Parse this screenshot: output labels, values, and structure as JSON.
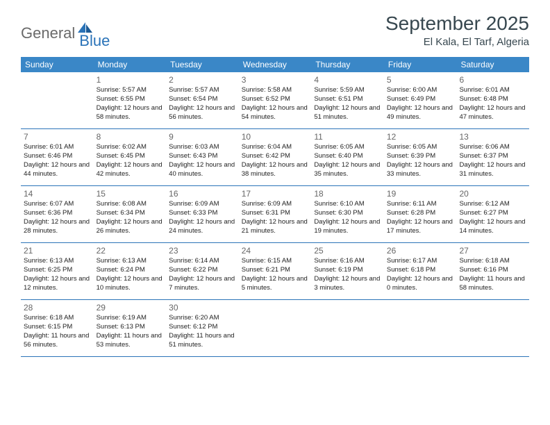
{
  "logo": {
    "general": "General",
    "blue": "Blue"
  },
  "title": "September 2025",
  "location": "El Kala, El Tarf, Algeria",
  "colors": {
    "header_bg": "#3a87c7",
    "header_text": "#ffffff",
    "row_border": "#2a73b8",
    "logo_gray": "#6a6a6a",
    "logo_blue": "#2a73b8",
    "title_color": "#37474f",
    "daynum_color": "#666666",
    "body_text": "#222222"
  },
  "day_names": [
    "Sunday",
    "Monday",
    "Tuesday",
    "Wednesday",
    "Thursday",
    "Friday",
    "Saturday"
  ],
  "weeks": [
    [
      null,
      {
        "n": "1",
        "sunrise": "5:57 AM",
        "sunset": "6:55 PM",
        "daylight": "12 hours and 58 minutes."
      },
      {
        "n": "2",
        "sunrise": "5:57 AM",
        "sunset": "6:54 PM",
        "daylight": "12 hours and 56 minutes."
      },
      {
        "n": "3",
        "sunrise": "5:58 AM",
        "sunset": "6:52 PM",
        "daylight": "12 hours and 54 minutes."
      },
      {
        "n": "4",
        "sunrise": "5:59 AM",
        "sunset": "6:51 PM",
        "daylight": "12 hours and 51 minutes."
      },
      {
        "n": "5",
        "sunrise": "6:00 AM",
        "sunset": "6:49 PM",
        "daylight": "12 hours and 49 minutes."
      },
      {
        "n": "6",
        "sunrise": "6:01 AM",
        "sunset": "6:48 PM",
        "daylight": "12 hours and 47 minutes."
      }
    ],
    [
      {
        "n": "7",
        "sunrise": "6:01 AM",
        "sunset": "6:46 PM",
        "daylight": "12 hours and 44 minutes."
      },
      {
        "n": "8",
        "sunrise": "6:02 AM",
        "sunset": "6:45 PM",
        "daylight": "12 hours and 42 minutes."
      },
      {
        "n": "9",
        "sunrise": "6:03 AM",
        "sunset": "6:43 PM",
        "daylight": "12 hours and 40 minutes."
      },
      {
        "n": "10",
        "sunrise": "6:04 AM",
        "sunset": "6:42 PM",
        "daylight": "12 hours and 38 minutes."
      },
      {
        "n": "11",
        "sunrise": "6:05 AM",
        "sunset": "6:40 PM",
        "daylight": "12 hours and 35 minutes."
      },
      {
        "n": "12",
        "sunrise": "6:05 AM",
        "sunset": "6:39 PM",
        "daylight": "12 hours and 33 minutes."
      },
      {
        "n": "13",
        "sunrise": "6:06 AM",
        "sunset": "6:37 PM",
        "daylight": "12 hours and 31 minutes."
      }
    ],
    [
      {
        "n": "14",
        "sunrise": "6:07 AM",
        "sunset": "6:36 PM",
        "daylight": "12 hours and 28 minutes."
      },
      {
        "n": "15",
        "sunrise": "6:08 AM",
        "sunset": "6:34 PM",
        "daylight": "12 hours and 26 minutes."
      },
      {
        "n": "16",
        "sunrise": "6:09 AM",
        "sunset": "6:33 PM",
        "daylight": "12 hours and 24 minutes."
      },
      {
        "n": "17",
        "sunrise": "6:09 AM",
        "sunset": "6:31 PM",
        "daylight": "12 hours and 21 minutes."
      },
      {
        "n": "18",
        "sunrise": "6:10 AM",
        "sunset": "6:30 PM",
        "daylight": "12 hours and 19 minutes."
      },
      {
        "n": "19",
        "sunrise": "6:11 AM",
        "sunset": "6:28 PM",
        "daylight": "12 hours and 17 minutes."
      },
      {
        "n": "20",
        "sunrise": "6:12 AM",
        "sunset": "6:27 PM",
        "daylight": "12 hours and 14 minutes."
      }
    ],
    [
      {
        "n": "21",
        "sunrise": "6:13 AM",
        "sunset": "6:25 PM",
        "daylight": "12 hours and 12 minutes."
      },
      {
        "n": "22",
        "sunrise": "6:13 AM",
        "sunset": "6:24 PM",
        "daylight": "12 hours and 10 minutes."
      },
      {
        "n": "23",
        "sunrise": "6:14 AM",
        "sunset": "6:22 PM",
        "daylight": "12 hours and 7 minutes."
      },
      {
        "n": "24",
        "sunrise": "6:15 AM",
        "sunset": "6:21 PM",
        "daylight": "12 hours and 5 minutes."
      },
      {
        "n": "25",
        "sunrise": "6:16 AM",
        "sunset": "6:19 PM",
        "daylight": "12 hours and 3 minutes."
      },
      {
        "n": "26",
        "sunrise": "6:17 AM",
        "sunset": "6:18 PM",
        "daylight": "12 hours and 0 minutes."
      },
      {
        "n": "27",
        "sunrise": "6:18 AM",
        "sunset": "6:16 PM",
        "daylight": "11 hours and 58 minutes."
      }
    ],
    [
      {
        "n": "28",
        "sunrise": "6:18 AM",
        "sunset": "6:15 PM",
        "daylight": "11 hours and 56 minutes."
      },
      {
        "n": "29",
        "sunrise": "6:19 AM",
        "sunset": "6:13 PM",
        "daylight": "11 hours and 53 minutes."
      },
      {
        "n": "30",
        "sunrise": "6:20 AM",
        "sunset": "6:12 PM",
        "daylight": "11 hours and 51 minutes."
      },
      null,
      null,
      null,
      null
    ]
  ],
  "labels": {
    "sunrise_prefix": "Sunrise: ",
    "sunset_prefix": "Sunset: ",
    "daylight_prefix": "Daylight: "
  }
}
